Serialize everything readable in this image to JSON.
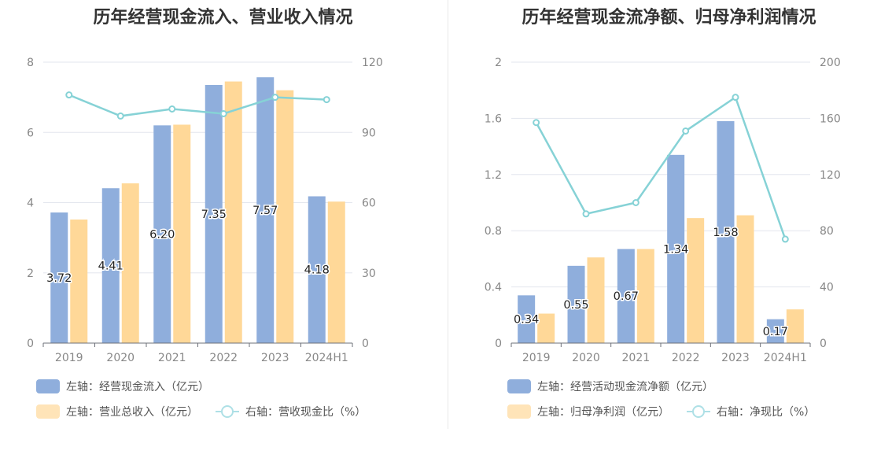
{
  "panels": [
    {
      "title": "历年经营现金流入、营业收入情况",
      "legend": {
        "row1": [
          {
            "label": "左轴：经营现金流入（亿元）",
            "color": "#8faedc",
            "kind": "bar"
          }
        ],
        "row2": [
          {
            "label": "左轴：营业总收入（亿元）",
            "color": "#ffe4b8",
            "kind": "bar"
          },
          {
            "label": "右轴：营收现金比（%）",
            "color": "#aee0e6",
            "kind": "line"
          }
        ]
      }
    },
    {
      "title": "历年经营现金流净额、归母净利润情况",
      "legend": {
        "row1": [
          {
            "label": "左轴：经营活动现金流净额（亿元）",
            "color": "#8faedc",
            "kind": "bar"
          }
        ],
        "row2": [
          {
            "label": "左轴：归母净利润（亿元）",
            "color": "#ffe4b8",
            "kind": "bar"
          },
          {
            "label": "右轴：净现比（%）",
            "color": "#aee0e6",
            "kind": "line"
          }
        ]
      }
    }
  ],
  "chart_data": [
    {
      "type": "bar",
      "title": "历年经营现金流入、营业收入情况",
      "categories": [
        "2019",
        "2020",
        "2021",
        "2022",
        "2023",
        "2024H1"
      ],
      "left_axis": {
        "min": 0,
        "max": 8,
        "ticks": [
          "0",
          "2",
          "4",
          "6",
          "8"
        ]
      },
      "right_axis": {
        "min": 0,
        "max": 120,
        "ticks": [
          "0",
          "30",
          "60",
          "90",
          "120"
        ]
      },
      "series": [
        {
          "name": "左轴：经营现金流入（亿元）",
          "type": "bar",
          "axis": "left",
          "color": "#8faedc",
          "values": [
            3.72,
            4.41,
            6.2,
            7.35,
            7.57,
            4.18
          ],
          "labels": [
            "3.72",
            "4.41",
            "6.20",
            "7.35",
            "7.57",
            "4.18"
          ]
        },
        {
          "name": "左轴：营业总收入（亿元）",
          "type": "bar",
          "axis": "left",
          "color": "#ffd898",
          "values": [
            3.52,
            4.55,
            6.22,
            7.45,
            7.2,
            4.03
          ]
        },
        {
          "name": "右轴：营收现金比（%）",
          "type": "line",
          "axis": "right",
          "color": "#86d2d6",
          "values": [
            106,
            97,
            100,
            98,
            105,
            104
          ]
        }
      ],
      "grid": true,
      "legend_position": "bottom-left"
    },
    {
      "type": "bar",
      "title": "历年经营现金流净额、归母净利润情况",
      "categories": [
        "2019",
        "2020",
        "2021",
        "2022",
        "2023",
        "2024H1"
      ],
      "left_axis": {
        "min": 0,
        "max": 2,
        "ticks": [
          "0",
          "0.4",
          "0.8",
          "1.2",
          "1.6",
          "2"
        ]
      },
      "right_axis": {
        "min": 0,
        "max": 200,
        "ticks": [
          "0",
          "40",
          "80",
          "120",
          "160",
          "200"
        ]
      },
      "series": [
        {
          "name": "左轴：经营活动现金流净额（亿元）",
          "type": "bar",
          "axis": "left",
          "color": "#8faedc",
          "values": [
            0.34,
            0.55,
            0.67,
            1.34,
            1.58,
            0.17
          ],
          "labels": [
            "0.34",
            "0.55",
            "0.67",
            "1.34",
            "1.58",
            "0.17"
          ]
        },
        {
          "name": "左轴：归母净利润（亿元）",
          "type": "bar",
          "axis": "left",
          "color": "#ffd898",
          "values": [
            0.21,
            0.61,
            0.67,
            0.89,
            0.91,
            0.24
          ]
        },
        {
          "name": "右轴：净现比（%）",
          "type": "line",
          "axis": "right",
          "color": "#86d2d6",
          "values": [
            157,
            92,
            100,
            151,
            175,
            74
          ]
        }
      ],
      "grid": true,
      "legend_position": "bottom-left"
    }
  ]
}
